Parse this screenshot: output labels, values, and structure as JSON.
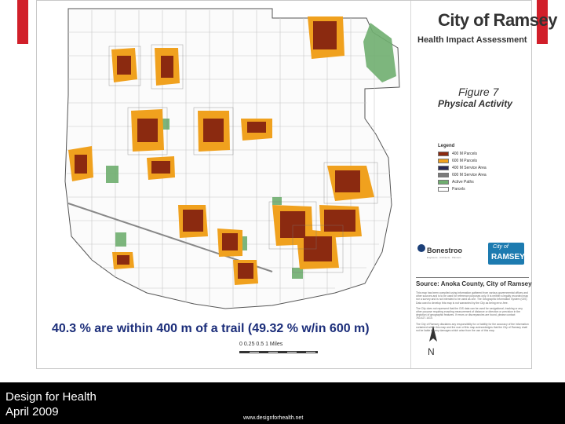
{
  "header": {
    "title": "City of Ramsey",
    "subtitle": "Health Impact Assessment"
  },
  "figure": {
    "label": "Figure 7",
    "name": "Physical Activity"
  },
  "legend": {
    "title": "Legend",
    "items": [
      {
        "label": "400 M Parcels",
        "color": "#8b2a10"
      },
      {
        "label": "600 M Parcels",
        "color": "#f0a11e"
      },
      {
        "label": "400 M Service Area",
        "color": "#2a2a55"
      },
      {
        "label": "600 M Service Area",
        "color": "#7a7a7a"
      },
      {
        "label": "Active Paths",
        "color": "#6fae6f"
      },
      {
        "label": "Parcels",
        "color": "#ffffff"
      }
    ]
  },
  "logos": {
    "bonestroo": "Bonestroo",
    "bonestroo_tagline": "Engineers · Architects · Planners",
    "ramsey_small": "City of",
    "ramsey_big": "RAMSEY"
  },
  "source": "Source: Anoka County, City of Ramsey",
  "disclaimer": [
    "This map has been compiled using information gathered from various governmental offices and other sources and is to be used for reference purposes only. It is neither a legally recorded map nor a survey and is not intended to be used as one. The Geographic Information System (GIS) Data used to develop this map is not warranted by the City as being error-free.",
    "The City does not represent that the GIS data can be used for navigational, tracking or any other purpose requiring exacting measurement of distance or direction or precision in the depiction of geographic features. If errors or discrepancies are found, please contact 763.427.1410.",
    "The City of Ramsey disclaims any responsibility for or liability for the accuracy of the information contained within this map and the user of this map acknowledges that the City of Ramsey shall not be liable for any damages which arise from the use of this map."
  ],
  "scale": {
    "text": "0  0.25 0.5        1 Miles"
  },
  "north": "N",
  "caption": "40.3 % are within 400 m of a trail (49.32 % w/in 600 m)",
  "footer": {
    "line1": "Design for Health",
    "line2": "April 2009",
    "url": "www.designforhealth.net"
  },
  "colors": {
    "accent_red": "#d11f2a",
    "caption_blue": "#1c2e7a",
    "footer_bg": "#000000"
  }
}
